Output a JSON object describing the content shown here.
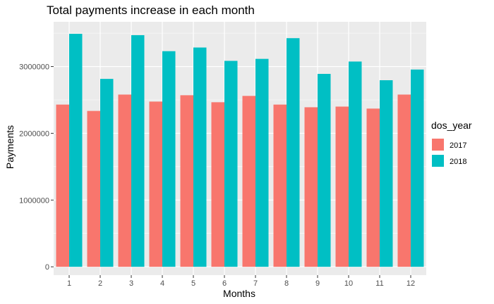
{
  "chart_data": {
    "type": "bar",
    "title": "Total payments increase in each month",
    "xlabel": "Months",
    "ylabel": "Payments",
    "categories": [
      "1",
      "2",
      "3",
      "4",
      "5",
      "6",
      "7",
      "8",
      "9",
      "10",
      "11",
      "12"
    ],
    "series": [
      {
        "name": "2017",
        "color": "#F8766D",
        "values": [
          2430000,
          2335000,
          2580000,
          2475000,
          2570000,
          2465000,
          2560000,
          2430000,
          2390000,
          2400000,
          2370000,
          2580000
        ]
      },
      {
        "name": "2018",
        "color": "#00BFC4",
        "values": [
          3490000,
          2815000,
          3470000,
          3230000,
          3285000,
          3085000,
          3115000,
          3425000,
          2890000,
          3075000,
          2795000,
          2955000
        ]
      }
    ],
    "yticks": [
      0,
      1000000,
      2000000,
      3000000
    ],
    "ytick_labels": [
      "0",
      "1000000",
      "2000000",
      "3000000"
    ],
    "ylim": [
      -125000,
      3670000
    ],
    "legend": {
      "title": "dos_year",
      "position": "right"
    },
    "grid": true,
    "panel_background": "#EBEBEB"
  }
}
